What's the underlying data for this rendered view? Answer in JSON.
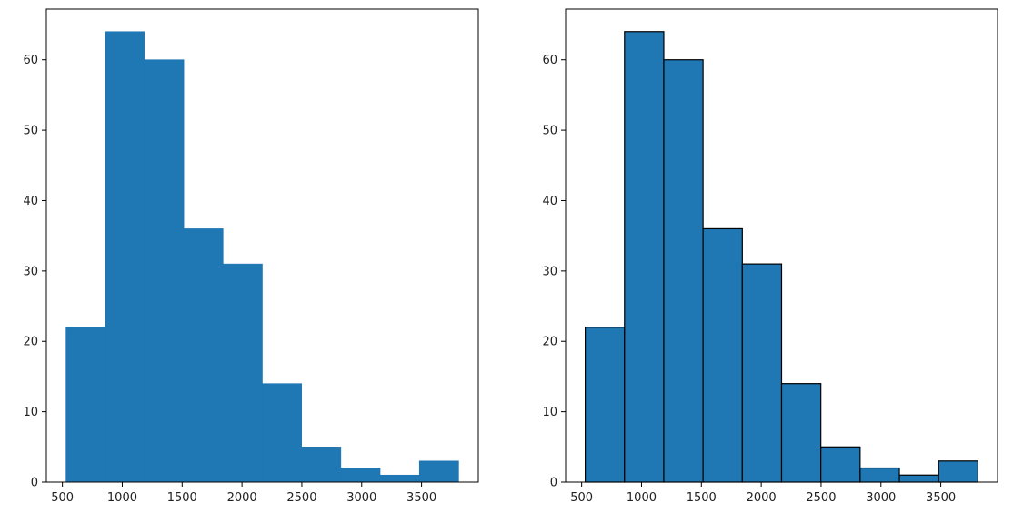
{
  "figure": {
    "background": "#ffffff"
  },
  "chart_data": [
    {
      "type": "bar",
      "subtype": "histogram",
      "bin_edges": [
        530,
        858,
        1186,
        1514,
        1842,
        2170,
        2498,
        2826,
        3154,
        3482,
        3810
      ],
      "values": [
        22,
        64,
        60,
        36,
        31,
        14,
        5,
        2,
        1,
        3
      ],
      "x_ticks": [
        500,
        1000,
        1500,
        2000,
        2500,
        3000,
        3500
      ],
      "y_ticks": [
        0,
        10,
        20,
        30,
        40,
        50,
        60
      ],
      "xlim": [
        366,
        3974
      ],
      "ylim": [
        0,
        67.2
      ],
      "bar_color": "#1f77b4",
      "edge_color": null,
      "title": "",
      "xlabel": "",
      "ylabel": "",
      "grid": false
    },
    {
      "type": "bar",
      "subtype": "histogram",
      "bin_edges": [
        530,
        858,
        1186,
        1514,
        1842,
        2170,
        2498,
        2826,
        3154,
        3482,
        3810
      ],
      "values": [
        22,
        64,
        60,
        36,
        31,
        14,
        5,
        2,
        1,
        3
      ],
      "x_ticks": [
        500,
        1000,
        1500,
        2000,
        2500,
        3000,
        3500
      ],
      "y_ticks": [
        0,
        10,
        20,
        30,
        40,
        50,
        60
      ],
      "xlim": [
        366,
        3974
      ],
      "ylim": [
        0,
        67.2
      ],
      "bar_color": "#1f77b4",
      "edge_color": "#000000",
      "title": "",
      "xlabel": "",
      "ylabel": "",
      "grid": false
    }
  ]
}
